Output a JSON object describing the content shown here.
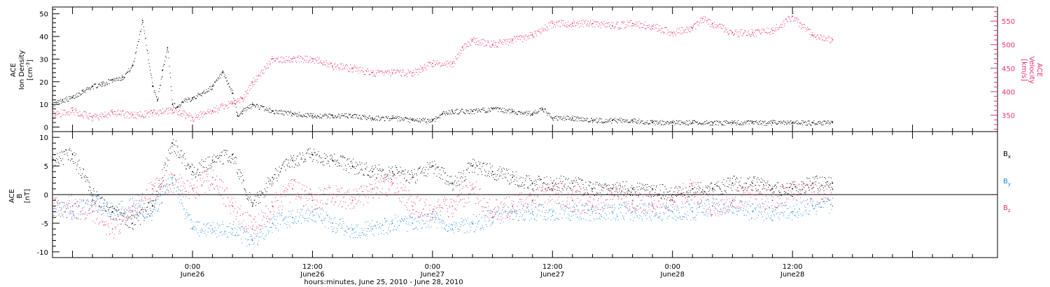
{
  "colors": {
    "black": "#000000",
    "pink": "#e8306a",
    "blue": "#1f87dc"
  },
  "xaxis": {
    "title": "hours:minutes, June 25, 2010 - June 28, 2010",
    "ticks": [
      {
        "hours": 24,
        "time": "0:00",
        "day": "June26"
      },
      {
        "hours": 36,
        "time": "12:00",
        "day": "June26"
      },
      {
        "hours": 48,
        "time": "0:00",
        "day": "June27"
      },
      {
        "hours": 60,
        "time": "12:00",
        "day": "June27"
      },
      {
        "hours": 72,
        "time": "0:00",
        "day": "June28"
      },
      {
        "hours": 84,
        "time": "12:00",
        "day": "June28"
      }
    ]
  },
  "chart_data": [
    {
      "type": "scatter",
      "panel": "top",
      "x_unit": "hours since 2010-06-25 00:00",
      "xlim": [
        10,
        104.5
      ],
      "left_axis": {
        "label_lines": [
          "ACE",
          "Ion Density"
        ],
        "unit_base": "[cm",
        "unit_sup": "-3",
        "unit_end": "]",
        "ylim": [
          -2,
          53
        ],
        "ticks": [
          0,
          10,
          20,
          30,
          40,
          50
        ]
      },
      "right_axis": {
        "label_lines": [
          "ACE",
          "Velocity",
          "[km/s]"
        ],
        "ylim": [
          315,
          580
        ],
        "ticks": [
          350,
          400,
          450,
          500,
          550
        ]
      },
      "series": [
        {
          "axis": "left",
          "color": "#000000",
          "x": [
            10,
            11,
            12,
            13,
            14,
            15,
            16,
            17,
            18,
            19,
            20,
            20.5,
            21,
            21.5,
            22,
            22.5,
            23,
            24,
            25,
            26,
            27,
            28,
            28.5,
            29,
            30,
            32,
            34,
            36,
            38,
            40,
            42,
            44,
            46,
            48,
            49,
            50,
            52,
            54,
            56,
            58,
            59,
            60,
            62,
            64,
            66,
            68,
            70,
            72,
            74,
            76,
            78,
            80,
            82,
            84,
            86,
            88
          ],
          "y": [
            10,
            12,
            13,
            16,
            18,
            19,
            21,
            22,
            27,
            47,
            18,
            12,
            25,
            35,
            10,
            9,
            11,
            13,
            15,
            18,
            24,
            15,
            5,
            7,
            10,
            7,
            6,
            5,
            5,
            5,
            4,
            4,
            3,
            3,
            6,
            7,
            7,
            8,
            7,
            6,
            8,
            4,
            4,
            3,
            3,
            3,
            2,
            2,
            2,
            2,
            2,
            2,
            2,
            2,
            2,
            2
          ]
        },
        {
          "axis": "right",
          "color": "#e8306a",
          "x": [
            10,
            12,
            14,
            16,
            18,
            20,
            22,
            24,
            26,
            28,
            29,
            30,
            32,
            34,
            36,
            38,
            40,
            42,
            44,
            46,
            47,
            48,
            50,
            51,
            52,
            54,
            56,
            58,
            60,
            62,
            64,
            66,
            68,
            70,
            72,
            74,
            75,
            76,
            78,
            80,
            82,
            84,
            86,
            88
          ],
          "y": [
            350,
            360,
            345,
            355,
            350,
            355,
            360,
            345,
            360,
            375,
            385,
            420,
            470,
            470,
            470,
            455,
            450,
            440,
            440,
            440,
            450,
            460,
            460,
            495,
            510,
            500,
            510,
            520,
            545,
            545,
            545,
            540,
            545,
            540,
            525,
            535,
            555,
            545,
            525,
            525,
            530,
            560,
            520,
            510
          ]
        }
      ]
    },
    {
      "type": "scatter",
      "panel": "bottom",
      "x_unit": "hours since 2010-06-25 00:00",
      "xlim": [
        10,
        104.5
      ],
      "ylabel_lines": [
        "ACE",
        "B",
        "[nT]"
      ],
      "ylim": [
        -11,
        11
      ],
      "yticks": [
        -10,
        -5,
        0,
        5,
        10
      ],
      "zero_line": true,
      "legend": {
        "placement": "right",
        "items": [
          {
            "base": "B",
            "sub": "x",
            "color": "#000000"
          },
          {
            "base": "B",
            "sub": "y",
            "color": "#1f87dc"
          },
          {
            "base": "B",
            "sub": "z",
            "color": "#e8306a"
          }
        ]
      },
      "series": [
        {
          "name": "Bx",
          "color": "#000000",
          "x": [
            10,
            12,
            14,
            16,
            18,
            20,
            22,
            24,
            26,
            28,
            30,
            32,
            34,
            36,
            38,
            40,
            42,
            44,
            46,
            48,
            50,
            52,
            54,
            56,
            58,
            60,
            62,
            64,
            66,
            68,
            70,
            72,
            74,
            76,
            78,
            80,
            82,
            84,
            86,
            88
          ],
          "y": [
            6,
            7,
            0,
            -3,
            -5,
            -2,
            9,
            4,
            6,
            7,
            -2,
            3,
            6,
            7,
            6,
            5,
            4,
            4,
            3,
            5,
            2,
            5,
            4,
            3,
            2,
            2,
            2,
            1,
            1,
            1,
            1,
            0,
            1,
            1,
            2,
            2,
            1,
            1,
            2,
            2
          ]
        },
        {
          "name": "By",
          "color": "#1f87dc",
          "x": [
            10,
            12,
            14,
            16,
            18,
            20,
            22,
            24,
            26,
            28,
            30,
            32,
            34,
            36,
            38,
            40,
            42,
            44,
            46,
            48,
            50,
            52,
            54,
            56,
            58,
            60,
            62,
            64,
            66,
            68,
            70,
            72,
            74,
            76,
            78,
            80,
            82,
            84,
            86,
            88
          ],
          "y": [
            -2,
            -3,
            -1,
            -3,
            -2,
            -3,
            3,
            -6,
            -6,
            -6,
            -8,
            -5,
            -4,
            -3,
            -5,
            -6,
            -6,
            -5,
            -5,
            -4,
            -6,
            -5,
            -4,
            -3,
            -3,
            -3,
            -3,
            -3,
            -3,
            -3,
            -3,
            -3,
            -3,
            -2,
            -2,
            -3,
            -3,
            -3,
            -2,
            -2
          ]
        },
        {
          "name": "Bz",
          "color": "#e8306a",
          "x": [
            10,
            12,
            14,
            16,
            18,
            20,
            22,
            24,
            26,
            28,
            30,
            32,
            34,
            36,
            38,
            40,
            42,
            44,
            46,
            48,
            50,
            52,
            54,
            56,
            58,
            60,
            62,
            64,
            66,
            68,
            70,
            72,
            74,
            76,
            78,
            80,
            82,
            84,
            86,
            88
          ],
          "y": [
            -2,
            -2,
            -3,
            -6,
            -3,
            1,
            2,
            1,
            3,
            -2,
            -6,
            -2,
            1,
            -1,
            0,
            -1,
            1,
            2,
            -2,
            -3,
            -2,
            1,
            -3,
            -2,
            -1,
            1,
            -1,
            -2,
            0,
            -1,
            -2,
            -1,
            1,
            -2,
            -1,
            0,
            -1,
            1,
            0,
            1
          ]
        }
      ]
    }
  ]
}
